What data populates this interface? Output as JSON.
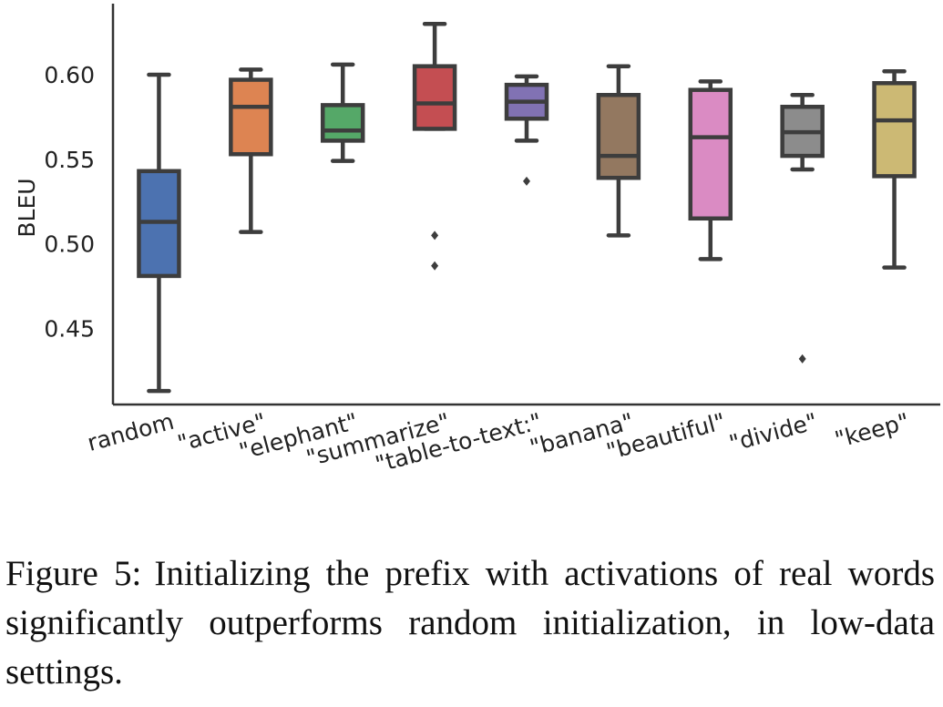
{
  "chart_data": {
    "type": "box",
    "ylabel": "BLEU",
    "xlabel": "",
    "ylim": [
      0.405,
      0.642
    ],
    "yticks": [
      0.45,
      0.5,
      0.55,
      0.6
    ],
    "ytick_labels": [
      "0.45",
      "0.50",
      "0.55",
      "0.60"
    ],
    "grid": false,
    "categories": [
      "random",
      "\"active\"",
      "\"elephant\"",
      "\"summarize\"",
      "\"table-to-text:\"",
      "\"banana\"",
      "\"beautiful\"",
      "\"divide\"",
      "\"keep\""
    ],
    "boxes": [
      {
        "whislo": 0.413,
        "q1": 0.481,
        "med": 0.513,
        "q3": 0.543,
        "whishi": 0.6,
        "fliers": [],
        "color": "#4c72b0"
      },
      {
        "whislo": 0.507,
        "q1": 0.553,
        "med": 0.581,
        "q3": 0.597,
        "whishi": 0.603,
        "fliers": [],
        "color": "#dd8452"
      },
      {
        "whislo": 0.549,
        "q1": 0.561,
        "med": 0.567,
        "q3": 0.582,
        "whishi": 0.606,
        "fliers": [],
        "color": "#55a868"
      },
      {
        "whislo": 0.568,
        "q1": 0.568,
        "med": 0.583,
        "q3": 0.605,
        "whishi": 0.63,
        "fliers": [
          0.505,
          0.487
        ],
        "color": "#c44e52"
      },
      {
        "whislo": 0.561,
        "q1": 0.574,
        "med": 0.584,
        "q3": 0.594,
        "whishi": 0.599,
        "fliers": [
          0.537
        ],
        "color": "#8172b3"
      },
      {
        "whislo": 0.505,
        "q1": 0.539,
        "med": 0.552,
        "q3": 0.588,
        "whishi": 0.605,
        "fliers": [],
        "color": "#937860"
      },
      {
        "whislo": 0.491,
        "q1": 0.515,
        "med": 0.563,
        "q3": 0.591,
        "whishi": 0.596,
        "fliers": [],
        "color": "#da8bc3"
      },
      {
        "whislo": 0.544,
        "q1": 0.552,
        "med": 0.566,
        "q3": 0.581,
        "whishi": 0.588,
        "fliers": [
          0.432
        ],
        "color": "#8c8c8c"
      },
      {
        "whislo": 0.486,
        "q1": 0.54,
        "med": 0.573,
        "q3": 0.595,
        "whishi": 0.602,
        "fliers": [],
        "color": "#ccb974"
      }
    ]
  },
  "caption": {
    "prefix": "Figure 5:",
    "text": "Initializing the prefix with activations of real words significantly outperforms random initialization, in low-data settings."
  }
}
